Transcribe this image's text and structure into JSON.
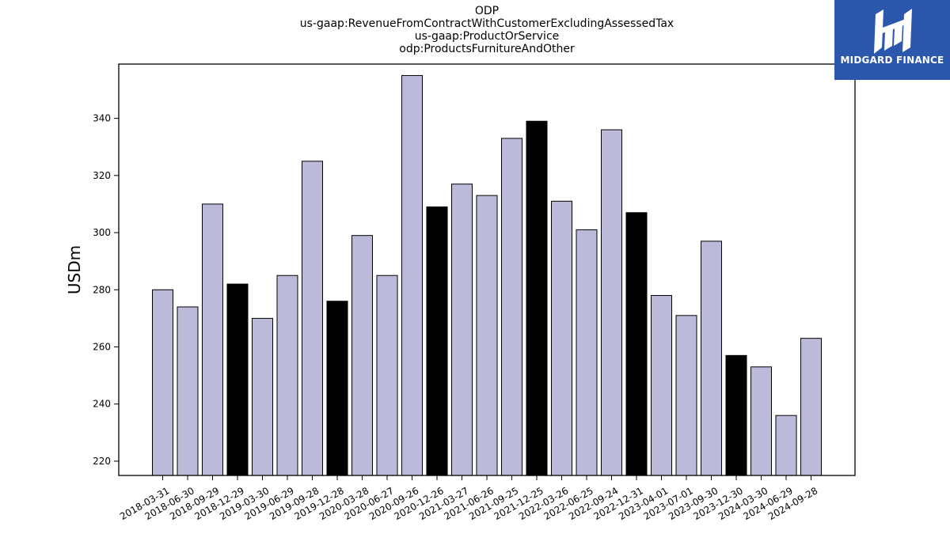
{
  "title_lines": [
    "ODP",
    "us-gaap:RevenueFromContractWithCustomerExcludingAssessedTax",
    "us-gaap:ProductOrService",
    "odp:ProductsFurnitureAndOther"
  ],
  "logo": {
    "text": "MIDGARD FINANCE",
    "background": "#2b57ad",
    "mark": "hm-monogram-logo"
  },
  "chart_data": {
    "type": "bar",
    "ylabel": "USDm",
    "xlabel": "",
    "ylim": [
      215,
      359
    ],
    "yticks": [
      220,
      240,
      260,
      280,
      300,
      320,
      340
    ],
    "grid": false,
    "categories": [
      "2018-03-31",
      "2018-06-30",
      "2018-09-29",
      "2018-12-29",
      "2019-03-30",
      "2019-06-29",
      "2019-09-28",
      "2019-12-28",
      "2020-03-28",
      "2020-06-27",
      "2020-09-26",
      "2020-12-26",
      "2021-03-27",
      "2021-06-26",
      "2021-09-25",
      "2021-12-25",
      "2022-03-26",
      "2022-06-25",
      "2022-09-24",
      "2022-12-31",
      "2023-04-01",
      "2023-07-01",
      "2023-09-30",
      "2023-12-30",
      "2024-03-30",
      "2024-06-29",
      "2024-09-28"
    ],
    "values": [
      280,
      274,
      310,
      282,
      270,
      285,
      325,
      276,
      299,
      285,
      355,
      309,
      317,
      313,
      333,
      339,
      311,
      301,
      336,
      307,
      278,
      271,
      297,
      257,
      253,
      236,
      263
    ],
    "highlight": [
      false,
      false,
      false,
      true,
      false,
      false,
      false,
      true,
      false,
      false,
      false,
      true,
      false,
      false,
      false,
      true,
      false,
      false,
      false,
      true,
      false,
      false,
      false,
      true,
      false,
      false,
      false
    ],
    "colors": {
      "normal": "#bcbad9",
      "highlight": "#000000",
      "edge": "#000000"
    }
  }
}
